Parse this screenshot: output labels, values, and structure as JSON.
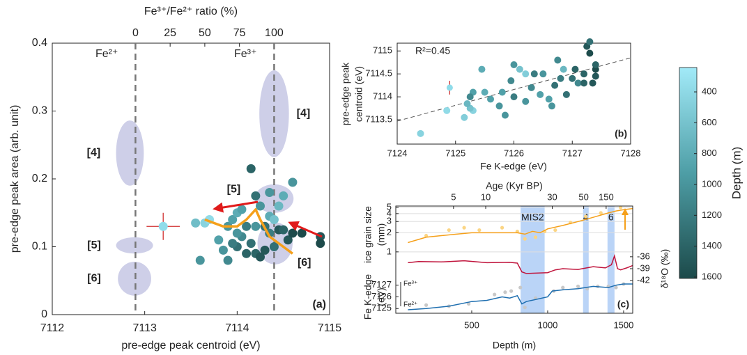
{
  "chart_data": [
    {
      "type": "scatter",
      "panel": "(a)",
      "xlabel": "pre-edge peak centroid (eV)",
      "ylabel": "pre-edge peak area (arb. unit)",
      "x2label": "Fe³⁺/Fe²⁺ ratio (%)",
      "xlim": [
        7112,
        7115
      ],
      "xticks": [
        7112,
        7113,
        7114,
        7115
      ],
      "ylim": [
        0,
        0.4
      ],
      "yticks": [
        0,
        0.1,
        0.2,
        0.3,
        0.4
      ],
      "x2lim": [
        -60,
        140
      ],
      "x2ticks": [
        0,
        25,
        50,
        75,
        100
      ],
      "ref_lines": [
        {
          "x2": 0,
          "label": "Fe²⁺"
        },
        {
          "x2": 100,
          "label": "Fe³⁺"
        }
      ],
      "region_color": "#c6c7e4",
      "regions": [
        {
          "label": "[4]",
          "x": 7112.84,
          "y": 0.238,
          "rx": 0.15,
          "ry": 0.048
        },
        {
          "label": "[5]",
          "x": 7112.89,
          "y": 0.102,
          "rx": 0.2,
          "ry": 0.012
        },
        {
          "label": "[6]",
          "x": 7112.89,
          "y": 0.053,
          "rx": 0.18,
          "ry": 0.025
        },
        {
          "label": "[4]",
          "x": 7114.4,
          "y": 0.296,
          "rx": 0.16,
          "ry": 0.064
        },
        {
          "label": "[5]",
          "x": 7114.4,
          "y": 0.171,
          "rx": 0.21,
          "ry": 0.021
        },
        {
          "label": "[6]",
          "x": 7114.41,
          "y": 0.105,
          "rx": 0.19,
          "ry": 0.031
        }
      ],
      "x": [
        7113.55,
        7113.65,
        7113.7,
        7113.6,
        7113.8,
        7113.85,
        7113.9,
        7113.95,
        7114.0,
        7114.05,
        7114.05,
        7114.1,
        7114.1,
        7114.15,
        7114.15,
        7114.2,
        7114.2,
        7114.25,
        7114.25,
        7114.3,
        7114.3,
        7114.35,
        7114.35,
        7114.35,
        7114.4,
        7114.4,
        7114.45,
        7114.45,
        7114.5,
        7114.5,
        7114.55,
        7114.6,
        7114.6,
        7114.7,
        7114.9,
        7114.9,
        7114.0,
        7113.9,
        7114.0,
        7114.2,
        7113.95
      ],
      "y": [
        0.135,
        0.135,
        0.14,
        0.08,
        0.11,
        0.095,
        0.13,
        0.14,
        0.15,
        0.155,
        0.115,
        0.13,
        0.09,
        0.105,
        0.215,
        0.09,
        0.13,
        0.16,
        0.085,
        0.095,
        0.13,
        0.18,
        0.145,
        0.12,
        0.1,
        0.14,
        0.16,
        0.125,
        0.175,
        0.125,
        0.11,
        0.195,
        0.12,
        0.12,
        0.115,
        0.105,
        0.1,
        0.08,
        0.12,
        0.175,
        0.105
      ],
      "depth": [
        650,
        450,
        380,
        1000,
        900,
        1000,
        1000,
        900,
        800,
        900,
        1100,
        1200,
        1400,
        1300,
        1400,
        1400,
        1000,
        1000,
        1500,
        1500,
        1300,
        1000,
        800,
        1200,
        1300,
        600,
        700,
        1500,
        800,
        1400,
        1500,
        1000,
        1600,
        1600,
        1500,
        1600,
        1300,
        1100,
        1000,
        1300,
        1200
      ],
      "trend": {
        "color": "#f5a01a",
        "x": [
          7113.65,
          7113.85,
          7114.0,
          7114.1,
          7114.2,
          7114.25,
          7114.35,
          7114.45,
          7114.6
        ],
        "y": [
          0.14,
          0.13,
          0.13,
          0.14,
          0.155,
          0.14,
          0.115,
          0.105,
          0.09
        ]
      },
      "reference": {
        "x": 7113.2,
        "y": 0.13,
        "xerr": 0.18,
        "yerr": 0.02,
        "color": "#8fdcea",
        "err_color": "#d03030"
      }
    },
    {
      "type": "scatter",
      "panel": "(b)",
      "xlabel": "Fe K-edge (eV)",
      "ylabel": [
        "pre-edge peak",
        "centroid (eV)"
      ],
      "annotation": "R²=0.45",
      "xlim": [
        7124,
        7128
      ],
      "xticks": [
        7124,
        7125,
        7126,
        7127,
        7128
      ],
      "ylim": [
        7112.97,
        7115.17
      ],
      "yticks": [
        7113.5,
        7114,
        7114.5,
        7115
      ],
      "x": [
        7124.4,
        7124.85,
        7125.15,
        7125.3,
        7125.25,
        7125.2,
        7125.3,
        7125.25,
        7125.45,
        7125.5,
        7125.6,
        7125.75,
        7125.8,
        7125.85,
        7125.95,
        7126.0,
        7126.1,
        7126.2,
        7126.2,
        7126.3,
        7126.35,
        7126.45,
        7126.5,
        7126.6,
        7126.65,
        7126.7,
        7126.8,
        7126.9,
        7127.0,
        7127.05,
        7126.85,
        7127.1,
        7127.2,
        7127.25,
        7127.3,
        7127.35,
        7127.4,
        7127.4,
        7127.2,
        7127.3,
        7126.0,
        7126.75,
        7127.4
      ],
      "y": [
        7113.2,
        7113.7,
        7113.55,
        7113.7,
        7113.75,
        7113.85,
        7114.1,
        7114.0,
        7114.6,
        7114.1,
        7113.95,
        7113.8,
        7114.1,
        7113.6,
        7114.35,
        7114.7,
        7114.6,
        7114.5,
        7113.9,
        7114.2,
        7114.5,
        7114.05,
        7114.5,
        7113.95,
        7113.8,
        7114.25,
        7114.4,
        7114.05,
        7114.4,
        7114.6,
        7114.6,
        7114.3,
        7114.5,
        7115.1,
        7115.2,
        7114.3,
        7114.6,
        7114.45,
        7114.3,
        7114.95,
        7114.0,
        7114.8,
        7114.7
      ],
      "depth": [
        450,
        380,
        500,
        450,
        600,
        700,
        900,
        1100,
        800,
        800,
        900,
        1000,
        900,
        1000,
        1100,
        1000,
        600,
        500,
        1000,
        1100,
        1200,
        900,
        1000,
        900,
        1000,
        1300,
        1200,
        1300,
        1300,
        1400,
        700,
        1100,
        1400,
        1500,
        1300,
        1500,
        1600,
        1500,
        1400,
        1600,
        1200,
        1100,
        1400
      ],
      "fit": {
        "color": "#555555",
        "x": [
          7124,
          7128
        ],
        "y": [
          7113.47,
          7114.85
        ]
      },
      "reference": {
        "x": 7124.9,
        "y": 7114.2,
        "xerr": 0.05,
        "yerr": 0.15,
        "color": "#8fdcea",
        "err_color": "#d03030"
      }
    },
    {
      "type": "multi",
      "panel": "(c)",
      "xlabel": "Depth (m)",
      "xlim": [
        0,
        1560
      ],
      "xticks": [
        500,
        1000,
        1500
      ],
      "x2label": "Age (Kyr BP)",
      "x2ticks": [
        {
          "value": 380,
          "label": "5"
        },
        {
          "value": 592,
          "label": "10"
        },
        {
          "value": 1030,
          "label": "30"
        },
        {
          "value": 1237,
          "label": "50"
        },
        {
          "value": 1385,
          "label": "150"
        }
      ],
      "band_color": "#a9c9f5",
      "bands": [
        {
          "label": "MIS2",
          "range": [
            822,
            980
          ]
        },
        {
          "label": "4",
          "range": [
            1233,
            1270
          ]
        },
        {
          "label": "6",
          "range": [
            1394,
            1440
          ]
        }
      ],
      "fe_markers": [
        "Fe³⁺",
        "Fe²⁺"
      ],
      "panels": [
        {
          "ylabel": [
            "ice grain size",
            "(mm)"
          ],
          "axis": "left",
          "log": true,
          "grid": true,
          "ylim": [
            0.7,
            5
          ],
          "yticks": [
            1,
            2,
            3,
            4,
            5
          ],
          "series": [
            {
              "kind": "points",
              "color": "#fbd584",
              "x": [
                200,
                350,
                450,
                550,
                700,
                800,
                850,
                920,
                980,
                1050,
                1150,
                1250,
                1350,
                1480
              ],
              "values": [
                1.8,
                2.2,
                2.4,
                2.2,
                2.4,
                2.1,
                1.6,
                1.7,
                2.1,
                2.2,
                2.9,
                3.6,
                4.1,
                5.0
              ]
            },
            {
              "kind": "line",
              "color": "#f5a01a",
              "x": [
                80,
                200,
                300,
                400,
                500,
                600,
                700,
                800,
                850,
                900,
                950,
                1000,
                1100,
                1200,
                1300,
                1400,
                1450,
                1500,
                1560
              ],
              "values": [
                1.4,
                1.7,
                1.8,
                1.9,
                2.0,
                2.0,
                2.0,
                2.0,
                1.9,
                2.1,
                2.0,
                2.3,
                2.6,
                3.0,
                3.5,
                4.1,
                4.4,
                4.6,
                4.8
              ]
            }
          ]
        },
        {
          "ylabel": [
            "δ¹⁸O (‰)"
          ],
          "axis": "right",
          "log": false,
          "grid": false,
          "ylim": [
            -43.2,
            -34.8
          ],
          "yticks": [
            -36,
            -39,
            -42
          ],
          "series": [
            {
              "kind": "line",
              "color": "#c0143c",
              "x": [
                80,
                150,
                300,
                450,
                600,
                750,
                800,
                830,
                860,
                1000,
                1050,
                1100,
                1200,
                1300,
                1380,
                1420,
                1440,
                1460,
                1480,
                1520,
                1560
              ],
              "values": [
                -37.5,
                -37.2,
                -37.3,
                -37.0,
                -37.5,
                -37.4,
                -37.6,
                -39.8,
                -40.2,
                -40.0,
                -39.3,
                -39.0,
                -39.2,
                -38.5,
                -38.8,
                -38.0,
                -35.8,
                -39.0,
                -39.3,
                -38.8,
                -38.2
              ]
            }
          ]
        },
        {
          "ylabel": [
            "Fe K-edge",
            "(eV)"
          ],
          "axis": "left",
          "log": false,
          "grid": false,
          "ylim": [
            7124.6,
            7127.4
          ],
          "yticks": [
            7125,
            7126,
            7127
          ],
          "series": [
            {
              "kind": "points",
              "color": "#c8c8c8",
              "x": [
                200,
                350,
                480,
                650,
                720,
                760,
                820,
                850,
                920,
                1040,
                1100,
                1200,
                1260,
                1330,
                1400,
                1450,
                1500
              ],
              "values": [
                7125.3,
                7125.2,
                7125.4,
                7126.2,
                7126.4,
                7126.5,
                7126.8,
                7125.1,
                7125.9,
                7126.5,
                7126.8,
                7126.9,
                7126.7,
                7126.9,
                7126.9,
                7126.8,
                7127.1
              ]
            },
            {
              "kind": "line",
              "color": "#1f6fb0",
              "x": [
                80,
                200,
                350,
                500,
                600,
                700,
                750,
                800,
                830,
                860,
                1000,
                1030,
                1100,
                1200,
                1300,
                1400,
                1450,
                1500,
                1560
              ],
              "values": [
                7124.9,
                7125.0,
                7125.2,
                7125.6,
                7125.7,
                7126.0,
                7125.9,
                7126.1,
                7125.4,
                7125.6,
                7126.0,
                7126.5,
                7126.6,
                7126.7,
                7126.9,
                7126.8,
                7127.0,
                7127.1,
                7127.1
              ]
            }
          ]
        }
      ]
    }
  ],
  "colorbar": {
    "label": "Depth (m)",
    "lim": [
      242,
      1609
    ],
    "ticks": [
      400,
      600,
      800,
      1000,
      1200,
      1400,
      1600
    ],
    "colors": [
      "#a2eaf8",
      "#4e9ea6",
      "#1c4a4a"
    ]
  }
}
